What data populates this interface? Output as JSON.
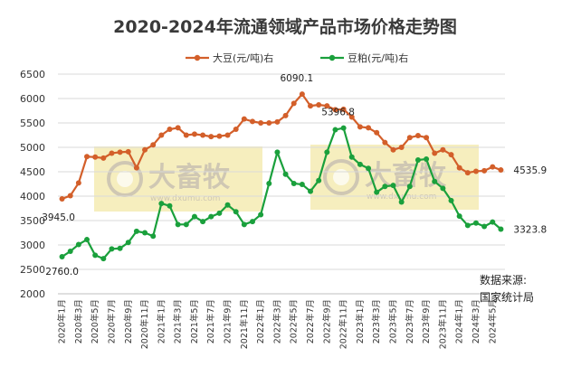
{
  "chart_data": {
    "type": "line",
    "title": "2020-2024年流通领域产品市场价格走势图",
    "ylim": [
      2000,
      6500
    ],
    "yticks": [
      2000,
      2500,
      3000,
      3500,
      4000,
      4500,
      5000,
      5500,
      6000,
      6500
    ],
    "grid": true,
    "legend_position": "top",
    "categories": [
      "2020年1月",
      "",
      "2020年3月",
      "",
      "2020年5月",
      "",
      "2020年7月",
      "",
      "2020年9月",
      "",
      "2020年11月",
      "",
      "2021年1月",
      "",
      "2021年3月",
      "",
      "2021年5月",
      "",
      "2021年7月",
      "",
      "2021年9月",
      "",
      "2021年11月",
      "",
      "2022年1月",
      "",
      "2022年3月",
      "",
      "2022年5月",
      "",
      "2022年7月",
      "",
      "2022年9月",
      "",
      "2022年11月",
      "",
      "2023年1月",
      "",
      "2023年3月",
      "",
      "2023年5月",
      "",
      "2023年7月",
      "",
      "2023年9月",
      "",
      "2023年11月",
      "",
      "2024年1月",
      "",
      "2024年3月",
      "",
      "2024年5月",
      ""
    ],
    "series": [
      {
        "name": "大豆(元/吨)右",
        "color": "#d35f2a",
        "values": [
          3945.0,
          4010,
          4270,
          4810,
          4800,
          4780,
          4880,
          4900,
          4910,
          4580,
          4950,
          5050,
          5250,
          5370,
          5400,
          5250,
          5270,
          5250,
          5220,
          5230,
          5250,
          5370,
          5580,
          5530,
          5500,
          5500,
          5520,
          5650,
          5900,
          6090.1,
          5850,
          5870,
          5850,
          5770,
          5780,
          5620,
          5420,
          5400,
          5300,
          5100,
          4950,
          5000,
          5200,
          5240,
          5200,
          4880,
          4950,
          4850,
          4580,
          4480,
          4510,
          4520,
          4600,
          4535.9
        ]
      },
      {
        "name": "豆粕(元/吨)右",
        "color": "#1aa03c",
        "values": [
          2760.0,
          2870,
          3010,
          3110,
          2790,
          2720,
          2920,
          2930,
          3050,
          3280,
          3250,
          3180,
          3850,
          3800,
          3420,
          3420,
          3580,
          3480,
          3580,
          3650,
          3820,
          3680,
          3420,
          3480,
          3620,
          4260,
          4900,
          4450,
          4260,
          4240,
          4100,
          4320,
          4900,
          5360,
          5396.8,
          4800,
          4650,
          4570,
          4080,
          4200,
          4220,
          3880,
          4200,
          4740,
          4760,
          4300,
          4160,
          3910,
          3590,
          3400,
          3450,
          3380,
          3470,
          3323.8
        ]
      }
    ],
    "point_labels": [
      {
        "series": 0,
        "index": 0,
        "text": "3945.0"
      },
      {
        "series": 0,
        "index": 29,
        "text": "6090.1"
      },
      {
        "series": 0,
        "index": 53,
        "text": "4535.9"
      },
      {
        "series": 1,
        "index": 0,
        "text": "2760.0"
      },
      {
        "series": 1,
        "index": 34,
        "text": "5396.8"
      },
      {
        "series": 1,
        "index": 53,
        "text": "3323.8"
      }
    ],
    "source_note": [
      "数据来源:",
      "国家统计局"
    ]
  },
  "watermark": {
    "text_cn": "大畜牧",
    "text_en": "www.dxumu.com",
    "box_color": "#f6eebe"
  }
}
